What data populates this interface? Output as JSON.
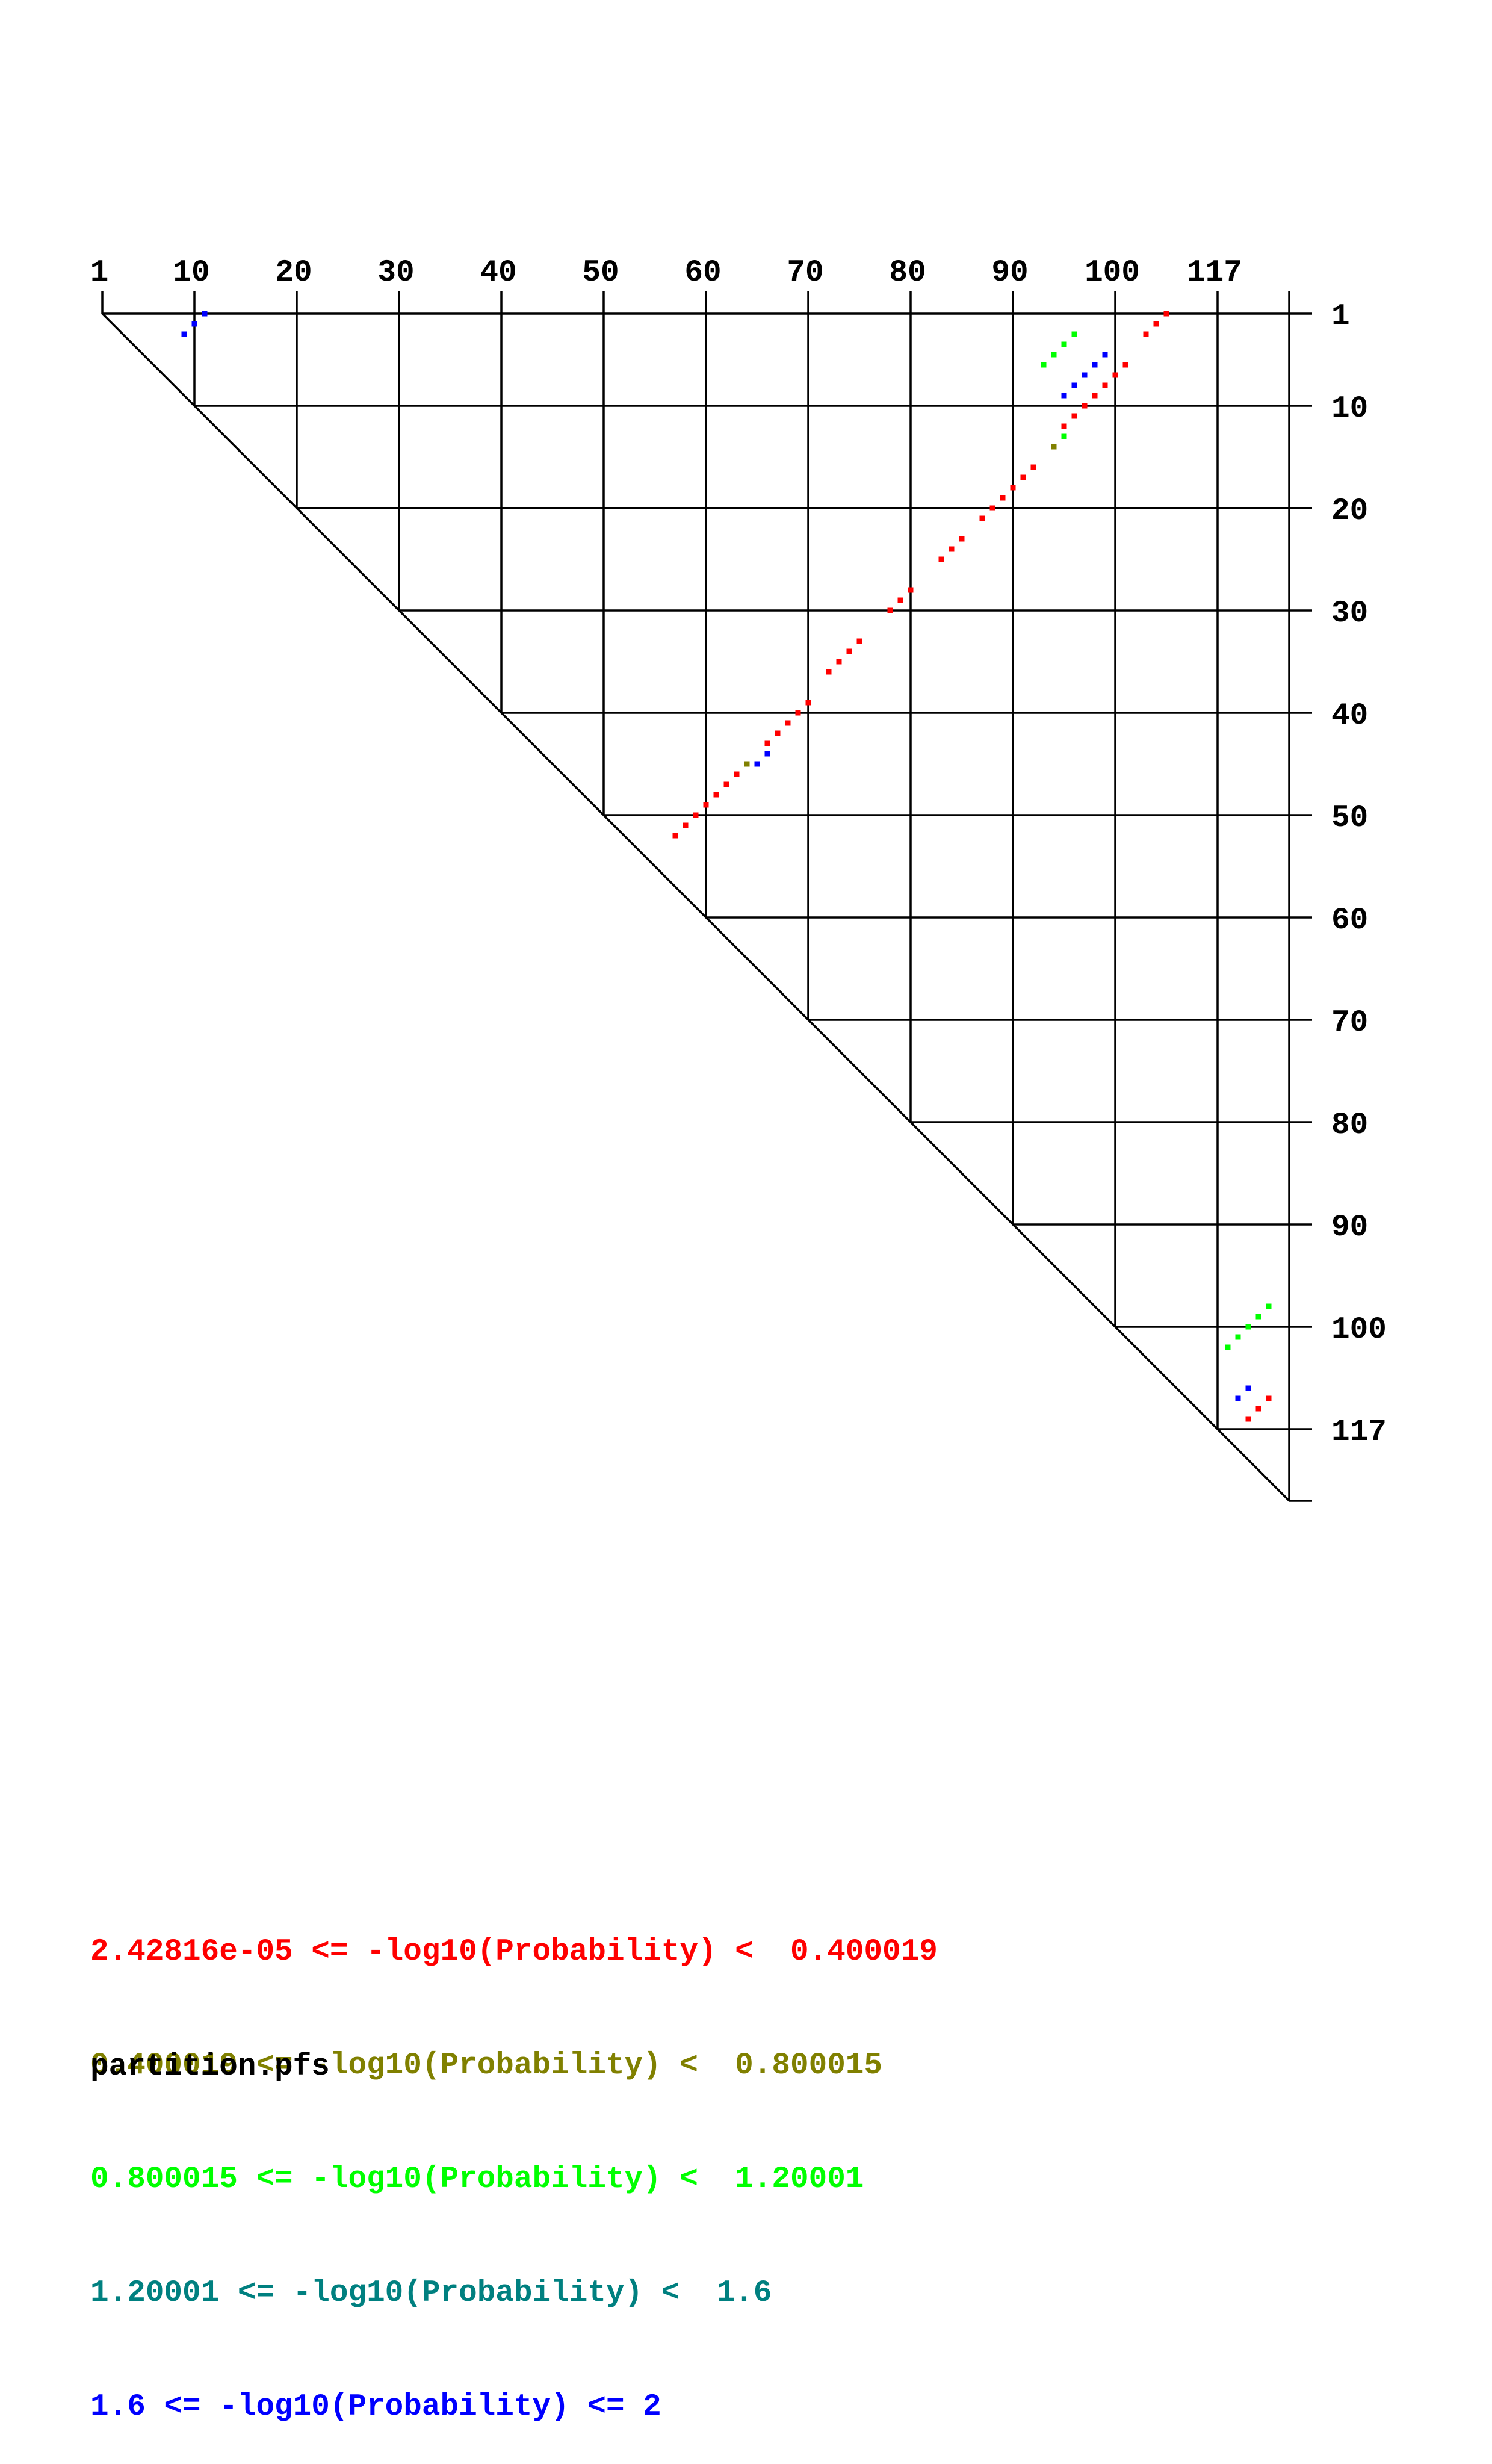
{
  "chart_data": {
    "type": "heatmap",
    "title": "",
    "xlabel": "",
    "ylabel": "",
    "sequence_length": 117,
    "grid_step": 10,
    "top_tick_labels": [
      "1",
      "10",
      "20",
      "30",
      "40",
      "50",
      "60",
      "70",
      "80",
      "90",
      "100",
      "117"
    ],
    "right_tick_labels": [
      "1",
      "10",
      "20",
      "30",
      "40",
      "50",
      "60",
      "70",
      "80",
      "90",
      "100",
      "117"
    ],
    "colors": {
      "bin1": "#ff0000",
      "bin2": "#808000",
      "bin3": "#00ff00",
      "bin4": "#008080",
      "bin5": "#0000ff",
      "axis": "#000000"
    },
    "points": [
      {
        "i": 1,
        "j": 105,
        "bin": 1
      },
      {
        "i": 2,
        "j": 104,
        "bin": 1
      },
      {
        "i": 3,
        "j": 103,
        "bin": 1
      },
      {
        "i": 6,
        "j": 101,
        "bin": 1
      },
      {
        "i": 7,
        "j": 100,
        "bin": 1
      },
      {
        "i": 8,
        "j": 99,
        "bin": 1
      },
      {
        "i": 9,
        "j": 98,
        "bin": 1
      },
      {
        "i": 10,
        "j": 97,
        "bin": 1
      },
      {
        "i": 11,
        "j": 96,
        "bin": 1
      },
      {
        "i": 12,
        "j": 95,
        "bin": 1
      },
      {
        "i": 16,
        "j": 92,
        "bin": 1
      },
      {
        "i": 17,
        "j": 91,
        "bin": 1
      },
      {
        "i": 18,
        "j": 90,
        "bin": 1
      },
      {
        "i": 19,
        "j": 89,
        "bin": 1
      },
      {
        "i": 20,
        "j": 88,
        "bin": 1
      },
      {
        "i": 21,
        "j": 87,
        "bin": 1
      },
      {
        "i": 23,
        "j": 85,
        "bin": 1
      },
      {
        "i": 24,
        "j": 84,
        "bin": 1
      },
      {
        "i": 25,
        "j": 83,
        "bin": 1
      },
      {
        "i": 28,
        "j": 80,
        "bin": 1
      },
      {
        "i": 29,
        "j": 79,
        "bin": 1
      },
      {
        "i": 30,
        "j": 78,
        "bin": 1
      },
      {
        "i": 33,
        "j": 75,
        "bin": 1
      },
      {
        "i": 34,
        "j": 74,
        "bin": 1
      },
      {
        "i": 35,
        "j": 73,
        "bin": 1
      },
      {
        "i": 36,
        "j": 72,
        "bin": 1
      },
      {
        "i": 39,
        "j": 70,
        "bin": 1
      },
      {
        "i": 40,
        "j": 69,
        "bin": 1
      },
      {
        "i": 41,
        "j": 68,
        "bin": 1
      },
      {
        "i": 42,
        "j": 67,
        "bin": 1
      },
      {
        "i": 43,
        "j": 66,
        "bin": 1
      },
      {
        "i": 46,
        "j": 63,
        "bin": 1
      },
      {
        "i": 47,
        "j": 62,
        "bin": 1
      },
      {
        "i": 48,
        "j": 61,
        "bin": 1
      },
      {
        "i": 49,
        "j": 60,
        "bin": 1
      },
      {
        "i": 50,
        "j": 59,
        "bin": 1
      },
      {
        "i": 51,
        "j": 58,
        "bin": 1
      },
      {
        "i": 52,
        "j": 57,
        "bin": 1
      },
      {
        "i": 13,
        "j": 95,
        "bin": 3
      },
      {
        "i": 14,
        "j": 94,
        "bin": 2
      },
      {
        "i": 3,
        "j": 96,
        "bin": 3
      },
      {
        "i": 4,
        "j": 95,
        "bin": 3
      },
      {
        "i": 5,
        "j": 94,
        "bin": 3
      },
      {
        "i": 6,
        "j": 93,
        "bin": 3
      },
      {
        "i": 5,
        "j": 99,
        "bin": 5
      },
      {
        "i": 6,
        "j": 98,
        "bin": 5
      },
      {
        "i": 7,
        "j": 97,
        "bin": 5
      },
      {
        "i": 8,
        "j": 96,
        "bin": 5
      },
      {
        "i": 9,
        "j": 95,
        "bin": 5
      },
      {
        "i": 44,
        "j": 66,
        "bin": 5
      },
      {
        "i": 45,
        "j": 65,
        "bin": 5
      },
      {
        "i": 45,
        "j": 64,
        "bin": 2
      },
      {
        "i": 1,
        "j": 11,
        "bin": 5
      },
      {
        "i": 2,
        "j": 10,
        "bin": 5
      },
      {
        "i": 3,
        "j": 9,
        "bin": 5
      },
      {
        "i": 98,
        "j": 115,
        "bin": 3
      },
      {
        "i": 99,
        "j": 114,
        "bin": 3
      },
      {
        "i": 100,
        "j": 113,
        "bin": 3
      },
      {
        "i": 101,
        "j": 112,
        "bin": 3
      },
      {
        "i": 102,
        "j": 111,
        "bin": 3
      },
      {
        "i": 106,
        "j": 113,
        "bin": 5
      },
      {
        "i": 107,
        "j": 112,
        "bin": 5
      },
      {
        "i": 107,
        "j": 115,
        "bin": 1
      },
      {
        "i": 108,
        "j": 114,
        "bin": 1
      },
      {
        "i": 109,
        "j": 113,
        "bin": 1
      }
    ],
    "legend": [
      "2.42816e-05 <= -log10(Probability) <  0.400019",
      "0.400019 <= -log10(Probability) <  0.800015",
      "0.800015 <= -log10(Probability) <  1.20001",
      "1.20001 <= -log10(Probability) <  1.6",
      "1.6 <= -log10(Probability) <= 2"
    ],
    "file_label": "partition.pfs"
  }
}
